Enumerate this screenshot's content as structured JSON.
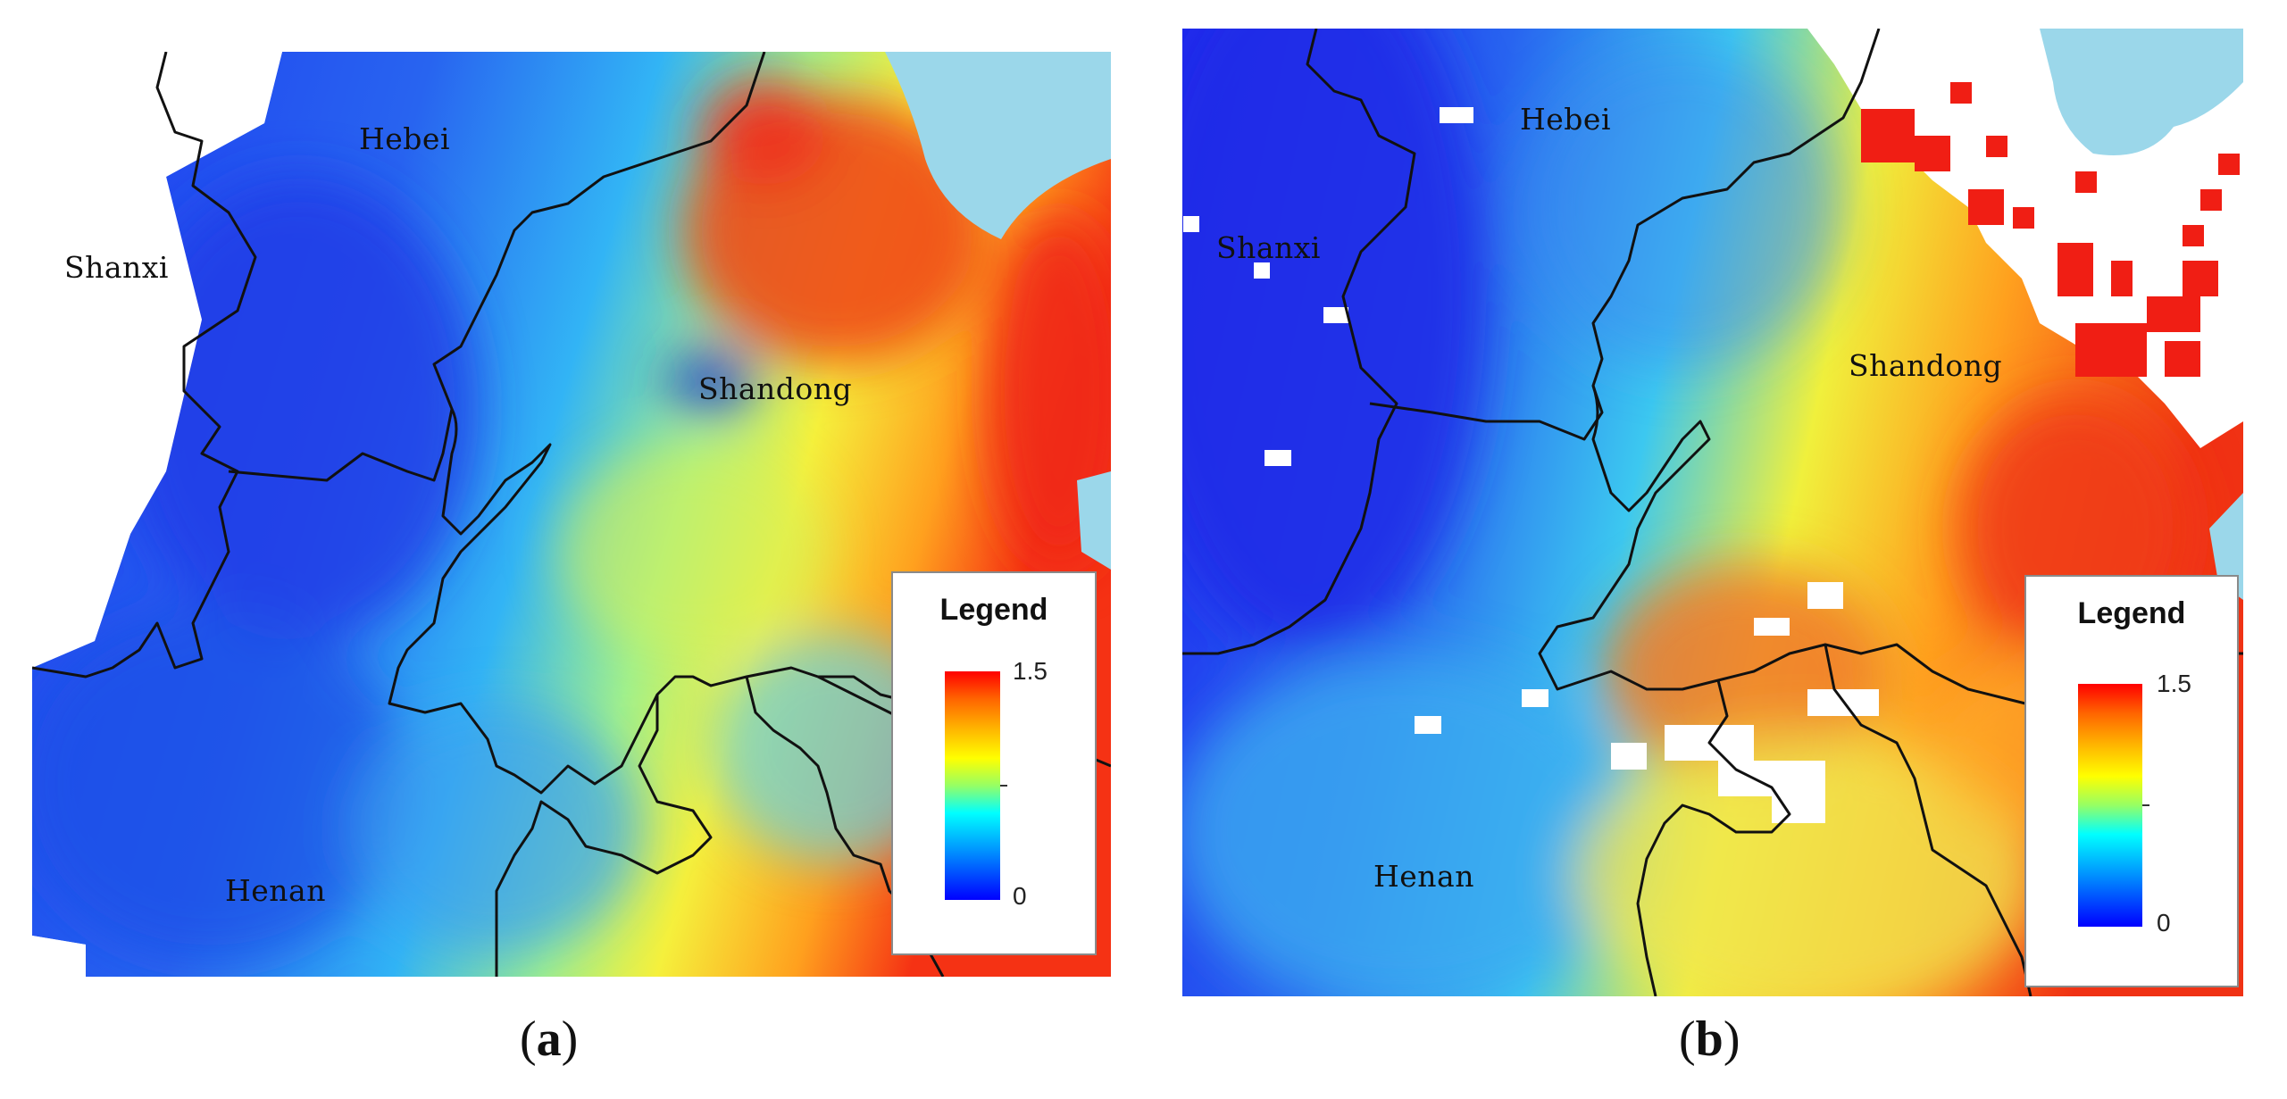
{
  "panels": [
    {
      "id": "a",
      "caption_open": "(",
      "caption_letter": "a",
      "caption_close": ")",
      "labels": {
        "hebei": "Hebei",
        "shanxi": "Shanxi",
        "shandong": "Shandong",
        "henan": "Henan"
      },
      "legend": {
        "title": "Legend",
        "max": "1.5",
        "min": "0"
      }
    },
    {
      "id": "b",
      "caption_open": "(",
      "caption_letter": "b",
      "caption_close": ")",
      "labels": {
        "hebei": "Hebei",
        "shanxi": "Shanxi",
        "shandong": "Shandong",
        "henan": "Henan"
      },
      "legend": {
        "title": "Legend",
        "max": "1.5",
        "min": "0"
      }
    }
  ],
  "colors": {
    "sea": "#9bd7ea",
    "boundary": "#111111",
    "ramp_low": "#0000ff",
    "ramp_high": "#ff0000",
    "no_data": "#ffffff"
  },
  "legend_range": [
    0,
    1.5
  ]
}
